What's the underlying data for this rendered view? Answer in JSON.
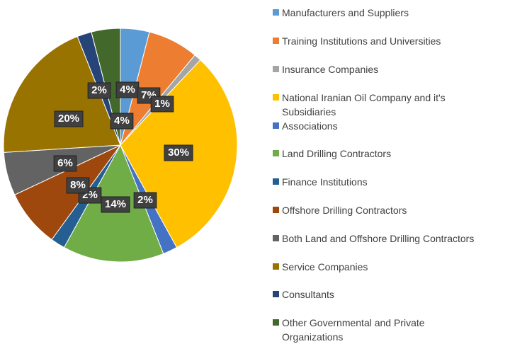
{
  "chart_data": {
    "type": "pie",
    "categories": [
      "Manufacturers and Suppliers",
      "Training Institutions and Universities",
      "Insurance Companies",
      "National Iranian Oil Company and it's Subsidiaries",
      "Associations",
      "Land Drilling Contractors",
      "Finance Institutions",
      "Offshore Drilling Contractors",
      "Both Land and Offshore Drilling Contractors",
      "Service Companies",
      "Consultants",
      "Other Governmental and Private Organizations"
    ],
    "values": [
      4,
      7,
      1,
      30,
      2,
      14,
      2,
      8,
      6,
      20,
      2,
      4
    ],
    "value_labels": [
      "4%",
      "7%",
      "1%",
      "30%",
      "2%",
      "14%",
      "2%",
      "8%",
      "6%",
      "20%",
      "2%",
      "4%"
    ],
    "colors": [
      "#5b9bd5",
      "#ed7d31",
      "#a5a5a5",
      "#ffc000",
      "#4472c4",
      "#70ad47",
      "#255e91",
      "#9e480e",
      "#636363",
      "#997300",
      "#264478",
      "#43682b"
    ],
    "legend": "right"
  }
}
